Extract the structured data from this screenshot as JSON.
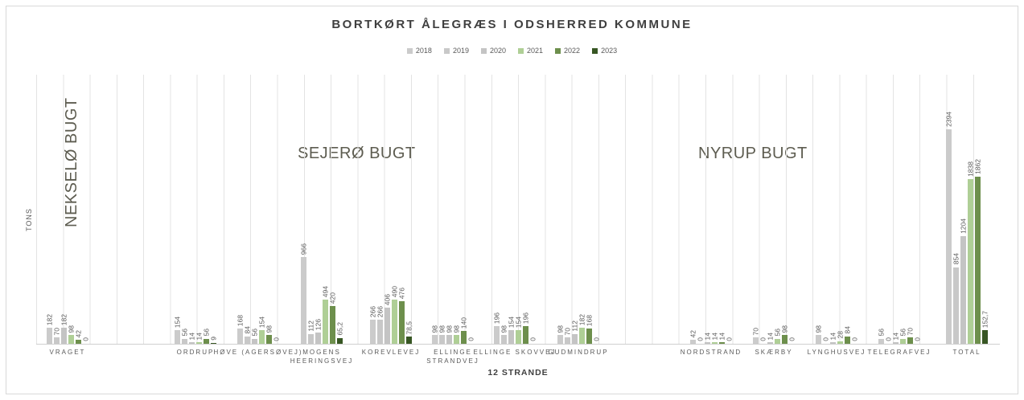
{
  "title": "BORTKØRT ÅLEGRÆS I ODSHERRED KOMMUNE",
  "chart_data": {
    "type": "bar",
    "title": "BORTKØRT ÅLEGRÆS I ODSHERRED KOMMUNE",
    "xlabel": "12 STRANDE",
    "ylabel": "TONS",
    "ylim": [
      0,
      3000
    ],
    "y_axis_labels_visible": false,
    "grid": "vertical gridlines only",
    "legend_position": "top-center",
    "sections": [
      {
        "label": "NEKSELØ BUGT",
        "categories": [
          "VRAGET"
        ]
      },
      {
        "label": "SEJERØ BUGT",
        "categories": [
          "ORDRUP",
          "HØVE (AGERSØVEJ)",
          "MOGENS HEERINGSVEJ",
          "KOREVLEVEJ",
          "ELLINGE STRANDVEJ",
          "ELLINGE SKOVVEJ",
          "GUDMINDRUP"
        ]
      },
      {
        "label": "NYRUP BUGT",
        "categories": [
          "NORDSTRAND",
          "SKÆRBY",
          "LYNGHUSVEJ",
          "TELEGRAFVEJ"
        ]
      }
    ],
    "categories": [
      "VRAGET",
      "ORDRUP",
      "HØVE (AGERSØVEJ)",
      "MOGENS HEERINGSVEJ",
      "KOREVLEVEJ",
      "ELLINGE STRANDVEJ",
      "ELLINGE SKOVVEJ",
      "GUDMINDRUP",
      "NORDSTRAND",
      "SKÆRBY",
      "LYNGHUSVEJ",
      "TELEGRAFVEJ",
      "TOTAL"
    ],
    "series": [
      {
        "name": "2018",
        "color": "#CBCBCB",
        "values": [
          182,
          154,
          168,
          966,
          266,
          98,
          196,
          98,
          42,
          70,
          98,
          56,
          2394
        ],
        "value_labels": [
          "182",
          "154",
          "168",
          "966",
          "266",
          "98",
          "196",
          "98",
          "42",
          "70",
          "98",
          "56",
          "2394"
        ]
      },
      {
        "name": "2019",
        "color": "#C8C8C8",
        "values": [
          70,
          56,
          84,
          112,
          266,
          98,
          98,
          70,
          0,
          0,
          0,
          0,
          854
        ],
        "value_labels": [
          "70",
          "56",
          "84",
          "112",
          "266",
          "98",
          "98",
          "70",
          "0",
          "0",
          "0",
          "0",
          "854"
        ]
      },
      {
        "name": "2020",
        "color": "#C4C4C4",
        "values": [
          182,
          14,
          56,
          126,
          406,
          98,
          154,
          112,
          14,
          14,
          14,
          14,
          1204
        ],
        "value_labels": [
          "182",
          "14",
          "56",
          "126",
          "406",
          "98",
          "154",
          "112",
          "14",
          "14",
          "14",
          "14",
          "1204"
        ]
      },
      {
        "name": "2021",
        "color": "#AFCF96",
        "values": [
          98,
          14,
          154,
          494,
          490,
          98,
          154,
          182,
          14,
          56,
          28,
          56,
          1838
        ],
        "value_labels": [
          "98",
          "14",
          "154",
          "494",
          "490",
          "98",
          "154",
          "182",
          "14",
          "56",
          "28",
          "56",
          "1838"
        ]
      },
      {
        "name": "2022",
        "color": "#6D8F4C",
        "values": [
          42,
          56,
          98,
          420,
          476,
          140,
          196,
          168,
          14,
          98,
          84,
          70,
          1862
        ],
        "value_labels": [
          "42",
          "56",
          "98",
          "420",
          "476",
          "140",
          "196",
          "168",
          "14",
          "98",
          "84",
          "70",
          "1862"
        ]
      },
      {
        "name": "2023",
        "color": "#375623",
        "values": [
          0,
          9,
          0,
          65.2,
          78.5,
          0,
          0,
          0,
          0,
          0,
          0,
          0,
          152.7
        ],
        "value_labels": [
          "0",
          "9",
          "0",
          "65,2",
          "78,5",
          "0",
          "0",
          "0",
          "0",
          "0",
          "0",
          "0",
          "152,7"
        ]
      }
    ]
  }
}
